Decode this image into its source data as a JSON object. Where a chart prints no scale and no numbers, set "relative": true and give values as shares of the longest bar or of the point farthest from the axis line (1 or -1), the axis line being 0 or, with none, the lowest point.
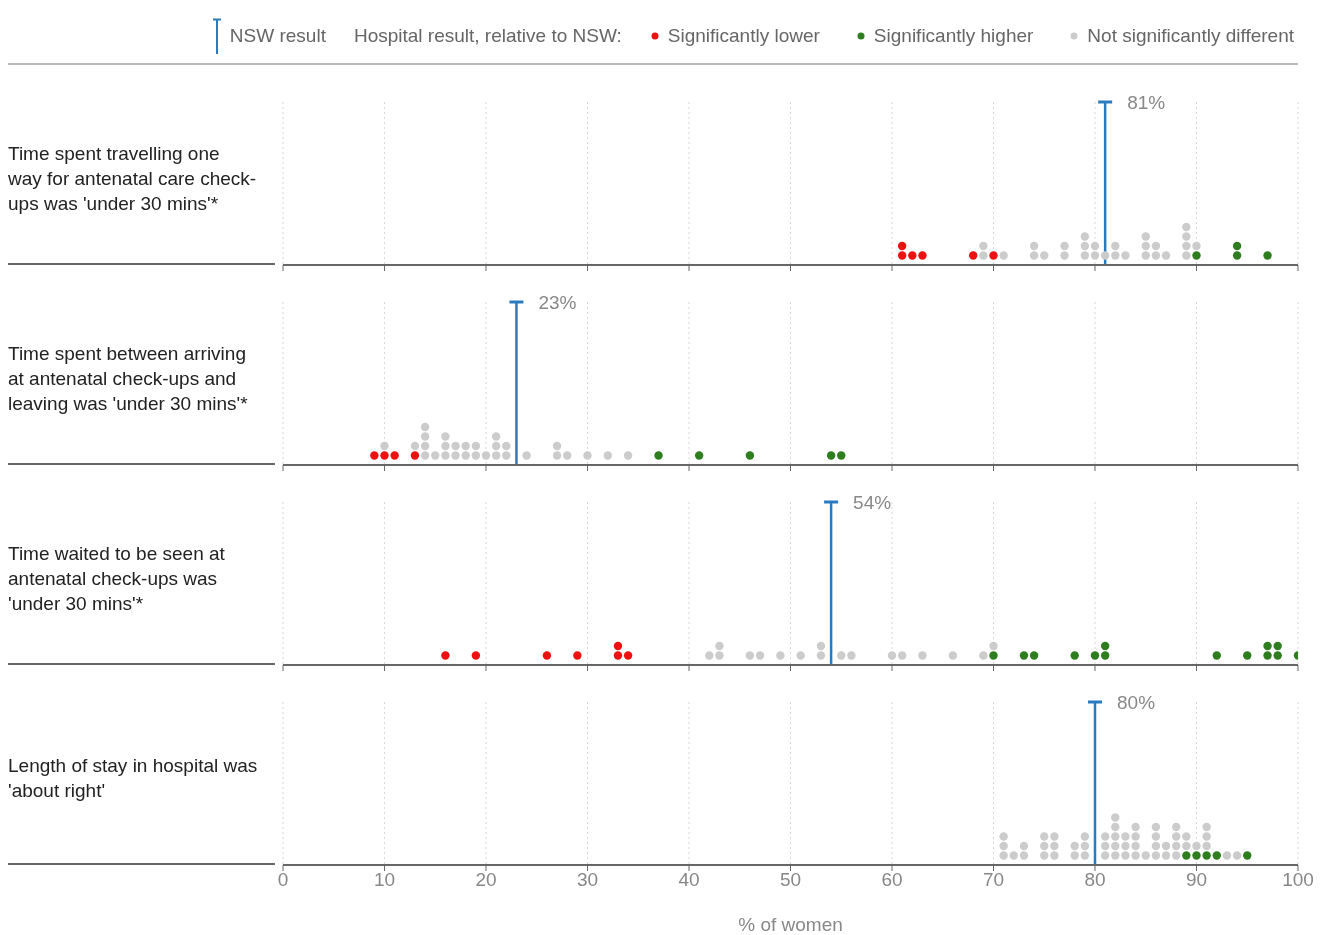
{
  "chart_data": [
    {
      "type": "scatter",
      "title": "Time spent travelling one way for antenatal care check-ups was 'under 30 mins'*",
      "relative": true,
      "xlim": [
        0,
        100
      ],
      "xticks": [
        0,
        10,
        20,
        30,
        40,
        50,
        60,
        70,
        80,
        90,
        100
      ],
      "grid": "x",
      "tick_labels": false,
      "marker": "circle",
      "legend": "top",
      "legend_title": "Hospital result, relative to NSW:",
      "annotations": [
        "NSW result"
      ],
      "ref_lines": [
        {
          "axis": "x",
          "value": 81,
          "label": "81%",
          "color": "#2a7ac0"
        }
      ],
      "series": [
        {
          "name": "Significantly lower",
          "color": "#ee1111",
          "x": [
            61,
            61,
            62,
            63,
            68,
            70
          ],
          "values": [
            0.25,
            0.5,
            0.25,
            0.25,
            0.25,
            0.25
          ]
        },
        {
          "name": "Significantly higher",
          "color": "#2e7d1f",
          "x": [
            90,
            94,
            94,
            97
          ],
          "values": [
            0.25,
            0.25,
            0.5,
            0.25
          ]
        },
        {
          "name": "Not significantly different",
          "color": "#cccccc",
          "x": [
            69,
            69,
            71,
            74,
            74,
            75,
            77,
            77,
            79,
            79,
            79,
            80,
            80,
            81,
            82,
            82,
            83,
            85,
            85,
            85,
            86,
            86,
            87,
            89,
            89,
            89,
            89,
            90
          ],
          "values": [
            0.25,
            0.5,
            0.25,
            0.25,
            0.5,
            0.25,
            0.25,
            0.5,
            0.25,
            0.5,
            0.75,
            0.25,
            0.5,
            0.25,
            0.25,
            0.5,
            0.25,
            0.25,
            0.5,
            0.75,
            0.25,
            0.5,
            0.25,
            0.25,
            0.5,
            0.75,
            1,
            0.5
          ]
        }
      ]
    },
    {
      "type": "scatter",
      "title": "Time spent between arriving at antenatal check-ups and leaving was 'under 30 mins'*",
      "relative": true,
      "xlim": [
        0,
        100
      ],
      "xticks": [
        0,
        10,
        20,
        30,
        40,
        50,
        60,
        70,
        80,
        90,
        100
      ],
      "grid": "x",
      "tick_labels": false,
      "marker": "circle",
      "ref_lines": [
        {
          "axis": "x",
          "value": 23,
          "label": "23%",
          "color": "#2a7ac0"
        }
      ],
      "series": [
        {
          "color": "#ee1111",
          "x": [
            9,
            10,
            11,
            13
          ],
          "values": [
            0.25,
            0.25,
            0.25,
            0.25
          ]
        },
        {
          "color": "#2e7d1f",
          "x": [
            37,
            41,
            46,
            54,
            55
          ],
          "values": [
            0.25,
            0.25,
            0.25,
            0.25,
            0.25
          ]
        },
        {
          "color": "#cccccc",
          "x": [
            10,
            13,
            14,
            14,
            14,
            14,
            15,
            16,
            16,
            16,
            17,
            17,
            18,
            18,
            19,
            19,
            20,
            21,
            21,
            21,
            22,
            22,
            24,
            27,
            27,
            28,
            30,
            32,
            34
          ],
          "values": [
            0.5,
            0.5,
            0.25,
            0.5,
            0.75,
            1,
            0.25,
            0.25,
            0.5,
            0.75,
            0.25,
            0.5,
            0.25,
            0.5,
            0.25,
            0.5,
            0.25,
            0.25,
            0.5,
            0.75,
            0.25,
            0.5,
            0.25,
            0.25,
            0.5,
            0.25,
            0.25,
            0.25,
            0.25
          ]
        }
      ]
    },
    {
      "type": "scatter",
      "title": "Time waited to be seen at antenatal check-ups was 'under 30 mins'*",
      "relative": true,
      "xlim": [
        0,
        100
      ],
      "xticks": [
        0,
        10,
        20,
        30,
        40,
        50,
        60,
        70,
        80,
        90,
        100
      ],
      "grid": "x",
      "tick_labels": false,
      "marker": "circle",
      "ref_lines": [
        {
          "axis": "x",
          "value": 54,
          "label": "54%",
          "color": "#2a7ac0"
        }
      ],
      "series": [
        {
          "color": "#ee1111",
          "x": [
            16,
            19,
            26,
            29,
            33,
            33,
            34
          ],
          "values": [
            0.5,
            0.5,
            0.5,
            0.5,
            0.5,
            1,
            0.5
          ]
        },
        {
          "color": "#2e7d1f",
          "x": [
            70,
            73,
            74,
            78,
            80,
            81,
            81,
            92,
            95,
            97,
            97,
            98,
            98,
            100
          ],
          "values": [
            0.5,
            0.5,
            0.5,
            0.5,
            0.5,
            0.5,
            1,
            0.5,
            0.5,
            0.5,
            1,
            0.5,
            1,
            0.5
          ]
        },
        {
          "color": "#cccccc",
          "x": [
            42,
            43,
            43,
            46,
            47,
            49,
            51,
            53,
            53,
            55,
            56,
            60,
            61,
            63,
            66,
            69,
            70
          ],
          "values": [
            0.5,
            0.5,
            1,
            0.5,
            0.5,
            0.5,
            0.5,
            0.5,
            1,
            0.5,
            0.5,
            0.5,
            0.5,
            0.5,
            0.5,
            0.5,
            1
          ]
        }
      ]
    },
    {
      "type": "scatter",
      "title": "Length of stay in hospital was 'about right'",
      "relative": true,
      "xlim": [
        0,
        100
      ],
      "xticks": [
        0,
        10,
        20,
        30,
        40,
        50,
        60,
        70,
        80,
        90,
        100
      ],
      "xlabel": "% of women",
      "grid": "x",
      "tick_labels": "x",
      "marker": "circle",
      "ref_lines": [
        {
          "axis": "x",
          "value": 80,
          "label": "80%",
          "color": "#2a7ac0"
        }
      ],
      "series": [
        {
          "color": "#2e7d1f",
          "x": [
            89,
            90,
            91,
            92,
            95
          ],
          "values": [
            0.2,
            0.2,
            0.2,
            0.2,
            0.2
          ]
        },
        {
          "color": "#cccccc",
          "x": [
            71,
            71,
            71,
            72,
            73,
            73,
            75,
            75,
            75,
            76,
            76,
            76,
            78,
            78,
            79,
            79,
            79,
            81,
            81,
            81,
            82,
            82,
            82,
            82,
            82,
            83,
            83,
            83,
            84,
            84,
            84,
            84,
            85,
            86,
            86,
            86,
            86,
            87,
            87,
            88,
            88,
            88,
            88,
            89,
            89,
            90,
            91,
            91,
            91,
            93,
            94
          ],
          "values": [
            0.2,
            0.4,
            0.6,
            0.2,
            0.2,
            0.4,
            0.2,
            0.4,
            0.6,
            0.2,
            0.4,
            0.6,
            0.2,
            0.4,
            0.2,
            0.4,
            0.6,
            0.2,
            0.4,
            0.6,
            0.2,
            0.4,
            0.6,
            0.8,
            1,
            0.2,
            0.4,
            0.6,
            0.2,
            0.4,
            0.6,
            0.8,
            0.2,
            0.2,
            0.4,
            0.6,
            0.8,
            0.2,
            0.4,
            0.2,
            0.4,
            0.6,
            0.8,
            0.4,
            0.6,
            0.4,
            0.4,
            0.6,
            0.8,
            0.2,
            0.2
          ]
        }
      ]
    }
  ]
}
